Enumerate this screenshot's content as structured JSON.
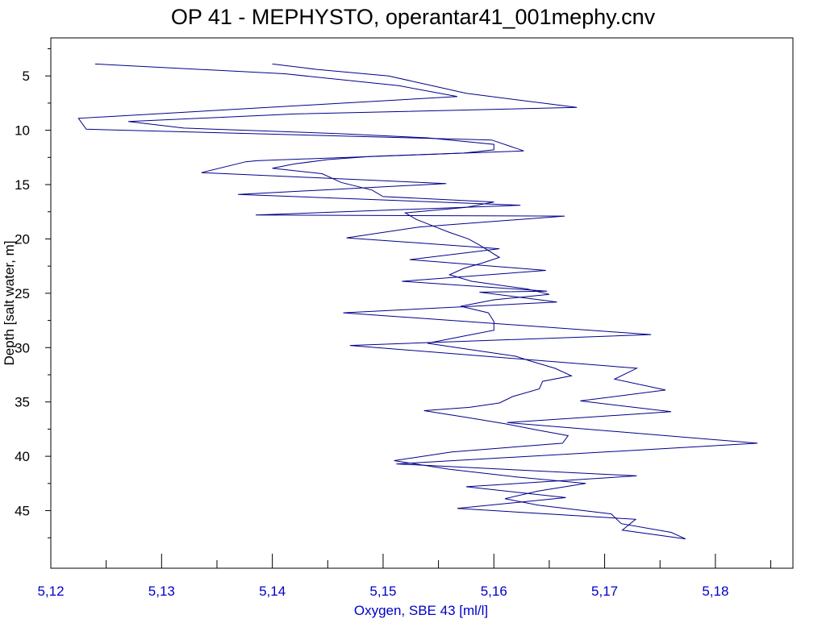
{
  "chart_data": {
    "type": "line",
    "title": "OP 41 - MEPHYSTO, operantar41_001mephy.cnv",
    "xlabel": "Oxygen, SBE 43 [ml/l]",
    "ylabel": "Depth [salt water, m]",
    "xlim": [
      5.12,
      5.187
    ],
    "ylim": [
      1.5,
      50.3
    ],
    "y_inverted": true,
    "x_ticks": [
      5.12,
      5.13,
      5.14,
      5.15,
      5.16,
      5.17,
      5.18
    ],
    "x_tick_labels": [
      "5,12",
      "5,13",
      "5,14",
      "5,15",
      "5,16",
      "5,17",
      "5,18"
    ],
    "x_minor_ticks": [
      5.125,
      5.135,
      5.145,
      5.155,
      5.165,
      5.175,
      5.185
    ],
    "y_ticks": [
      5,
      10,
      15,
      20,
      25,
      30,
      35,
      40,
      45
    ],
    "y_tick_labels": [
      "5",
      "10",
      "15",
      "20",
      "25",
      "30",
      "35",
      "40",
      "45"
    ],
    "y_minor_ticks": [
      2.5,
      7.5,
      12.5,
      17.5,
      22.5,
      27.5,
      32.5,
      37.5,
      42.5,
      47.5
    ],
    "grid": false,
    "legend": "none",
    "colors": {
      "line": "#00008b",
      "x_axis_text": "#0000c8",
      "axis": "#000000"
    },
    "series": [
      {
        "points": [
          [
            5.124,
            3.9
          ],
          [
            5.1411,
            4.8
          ],
          [
            5.1514,
            5.9
          ],
          [
            5.1567,
            6.9
          ],
          [
            5.1225,
            8.9
          ],
          [
            5.1232,
            9.9
          ],
          [
            5.1598,
            10.9
          ],
          [
            5.1627,
            11.9
          ],
          [
            5.1386,
            12.8
          ],
          [
            5.1376,
            12.9
          ],
          [
            5.1336,
            13.9
          ],
          [
            5.1557,
            14.9
          ],
          [
            5.1369,
            15.9
          ],
          [
            5.1624,
            16.9
          ],
          [
            5.1385,
            17.8
          ],
          [
            5.1664,
            17.9
          ],
          [
            5.1533,
            18.9
          ],
          [
            5.1467,
            19.9
          ],
          [
            5.1605,
            20.9
          ],
          [
            5.1524,
            21.9
          ],
          [
            5.1647,
            22.9
          ],
          [
            5.1517,
            23.9
          ],
          [
            5.1648,
            24.8
          ],
          [
            5.1587,
            24.9
          ],
          [
            5.1657,
            25.8
          ],
          [
            5.1464,
            26.8
          ],
          [
            5.1742,
            28.8
          ],
          [
            5.147,
            29.8
          ],
          [
            5.1729,
            31.9
          ],
          [
            5.1709,
            32.9
          ],
          [
            5.1755,
            33.9
          ],
          [
            5.1678,
            34.9
          ],
          [
            5.176,
            35.9
          ],
          [
            5.1612,
            36.9
          ],
          [
            5.1838,
            38.8
          ],
          [
            5.1512,
            40.7
          ],
          [
            5.1729,
            41.8
          ],
          [
            5.1575,
            42.8
          ],
          [
            5.1665,
            43.8
          ],
          [
            5.1567,
            44.8
          ],
          [
            5.1728,
            45.8
          ],
          [
            5.1716,
            46.8
          ],
          [
            5.1773,
            47.6
          ]
        ]
      },
      {
        "points": [
          [
            5.14,
            3.9
          ],
          [
            5.144,
            4.4
          ],
          [
            5.1505,
            5.0
          ],
          [
            5.154,
            5.8
          ],
          [
            5.1575,
            6.6
          ],
          [
            5.1675,
            7.9
          ],
          [
            5.142,
            8.5
          ],
          [
            5.127,
            9.2
          ],
          [
            5.132,
            9.8
          ],
          [
            5.1459,
            10.3
          ],
          [
            5.154,
            10.7
          ],
          [
            5.16,
            11.3
          ],
          [
            5.16,
            11.8
          ],
          [
            5.1573,
            12.1
          ],
          [
            5.149,
            12.4
          ],
          [
            5.145,
            12.7
          ],
          [
            5.142,
            13.1
          ],
          [
            5.14,
            13.5
          ],
          [
            5.1445,
            14.0
          ],
          [
            5.1462,
            14.8
          ],
          [
            5.149,
            15.5
          ],
          [
            5.15,
            16.1
          ],
          [
            5.16,
            16.6
          ],
          [
            5.1575,
            17.1
          ],
          [
            5.152,
            17.6
          ],
          [
            5.153,
            18.2
          ],
          [
            5.1545,
            18.8
          ],
          [
            5.156,
            19.4
          ],
          [
            5.1577,
            20.0
          ],
          [
            5.1586,
            20.5
          ],
          [
            5.1594,
            21.0
          ],
          [
            5.1605,
            21.7
          ],
          [
            5.159,
            22.2
          ],
          [
            5.1573,
            22.7
          ],
          [
            5.156,
            23.3
          ],
          [
            5.158,
            23.9
          ],
          [
            5.163,
            24.6
          ],
          [
            5.165,
            25.1
          ],
          [
            5.16,
            25.6
          ],
          [
            5.157,
            26.2
          ],
          [
            5.1595,
            26.8
          ],
          [
            5.16,
            27.6
          ],
          [
            5.16,
            28.4
          ],
          [
            5.157,
            29.0
          ],
          [
            5.154,
            29.6
          ],
          [
            5.158,
            30.2
          ],
          [
            5.162,
            30.8
          ],
          [
            5.1632,
            31.2
          ],
          [
            5.1655,
            31.9
          ],
          [
            5.167,
            32.6
          ],
          [
            5.1644,
            33.1
          ],
          [
            5.1641,
            33.8
          ],
          [
            5.1617,
            34.5
          ],
          [
            5.1605,
            35.1
          ],
          [
            5.1578,
            35.5
          ],
          [
            5.1537,
            35.8
          ],
          [
            5.158,
            36.5
          ],
          [
            5.161,
            37.0
          ],
          [
            5.164,
            37.6
          ],
          [
            5.1667,
            38.1
          ],
          [
            5.1662,
            38.8
          ],
          [
            5.1562,
            39.6
          ],
          [
            5.151,
            40.4
          ],
          [
            5.156,
            41.2
          ],
          [
            5.162,
            41.9
          ],
          [
            5.1683,
            42.5
          ],
          [
            5.164,
            43.2
          ],
          [
            5.161,
            43.9
          ],
          [
            5.164,
            44.5
          ],
          [
            5.1706,
            45.3
          ],
          [
            5.1715,
            46.2
          ],
          [
            5.176,
            47.0
          ],
          [
            5.1773,
            47.6
          ]
        ]
      }
    ]
  }
}
